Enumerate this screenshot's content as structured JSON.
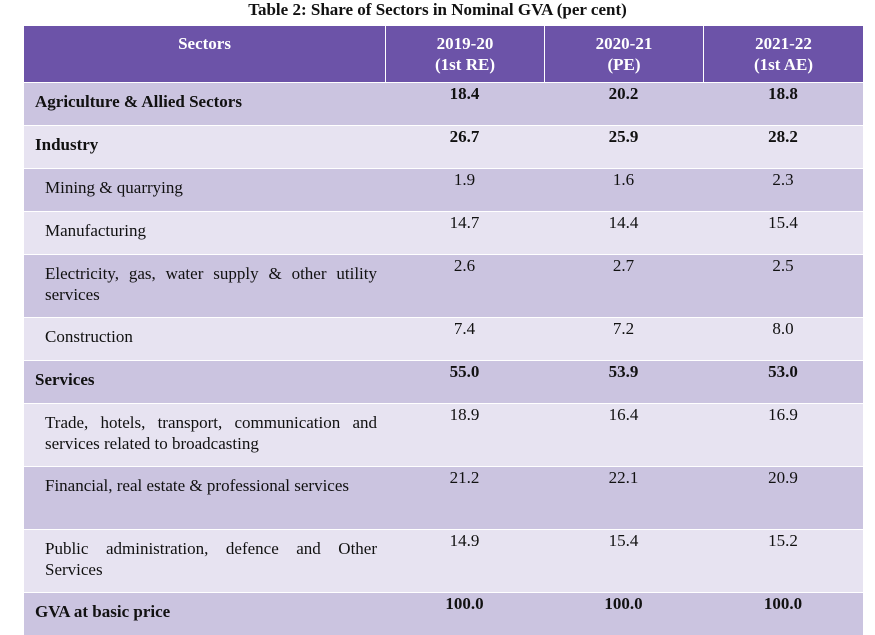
{
  "title": "Table 2: Share of Sectors in Nominal GVA (per cent)",
  "header": {
    "sectors": "Sectors",
    "col1_line1": "2019-20",
    "col1_line2": "(1st RE)",
    "col2_line1": "2020-21",
    "col2_line2": "(PE)",
    "col3_line1": "2021-22",
    "col3_line2": "(1st AE)"
  },
  "rows": [
    {
      "label": "Agriculture & Allied Sectors",
      "v1": "18.4",
      "v2": "20.2",
      "v3": "18.8"
    },
    {
      "label": "Industry",
      "v1": "26.7",
      "v2": "25.9",
      "v3": "28.2"
    },
    {
      "label": "Mining & quarrying",
      "v1": "1.9",
      "v2": "1.6",
      "v3": "2.3"
    },
    {
      "label": "Manufacturing",
      "v1": "14.7",
      "v2": "14.4",
      "v3": "15.4"
    },
    {
      "label": "Electricity, gas, water supply & other utility services",
      "v1": "2.6",
      "v2": "2.7",
      "v3": "2.5"
    },
    {
      "label": "Construction",
      "v1": "7.4",
      "v2": "7.2",
      "v3": "8.0"
    },
    {
      "label": "Services",
      "v1": "55.0",
      "v2": "53.9",
      "v3": "53.0"
    },
    {
      "label": "Trade, hotels, transport, communication and services related to broadcasting",
      "v1": "18.9",
      "v2": "16.4",
      "v3": "16.9"
    },
    {
      "label": "Financial, real estate & professional services",
      "v1": "21.2",
      "v2": "22.1",
      "v3": "20.9"
    },
    {
      "label": "Public administration, defence and Other Services",
      "v1": "14.9",
      "v2": "15.4",
      "v3": "15.2"
    },
    {
      "label": "GVA at basic price",
      "v1": "100.0",
      "v2": "100.0",
      "v3": "100.0"
    }
  ],
  "colors": {
    "header_bg": "#6c53a8",
    "row_dark": "#cbc4e0",
    "row_light": "#e7e3f1"
  }
}
